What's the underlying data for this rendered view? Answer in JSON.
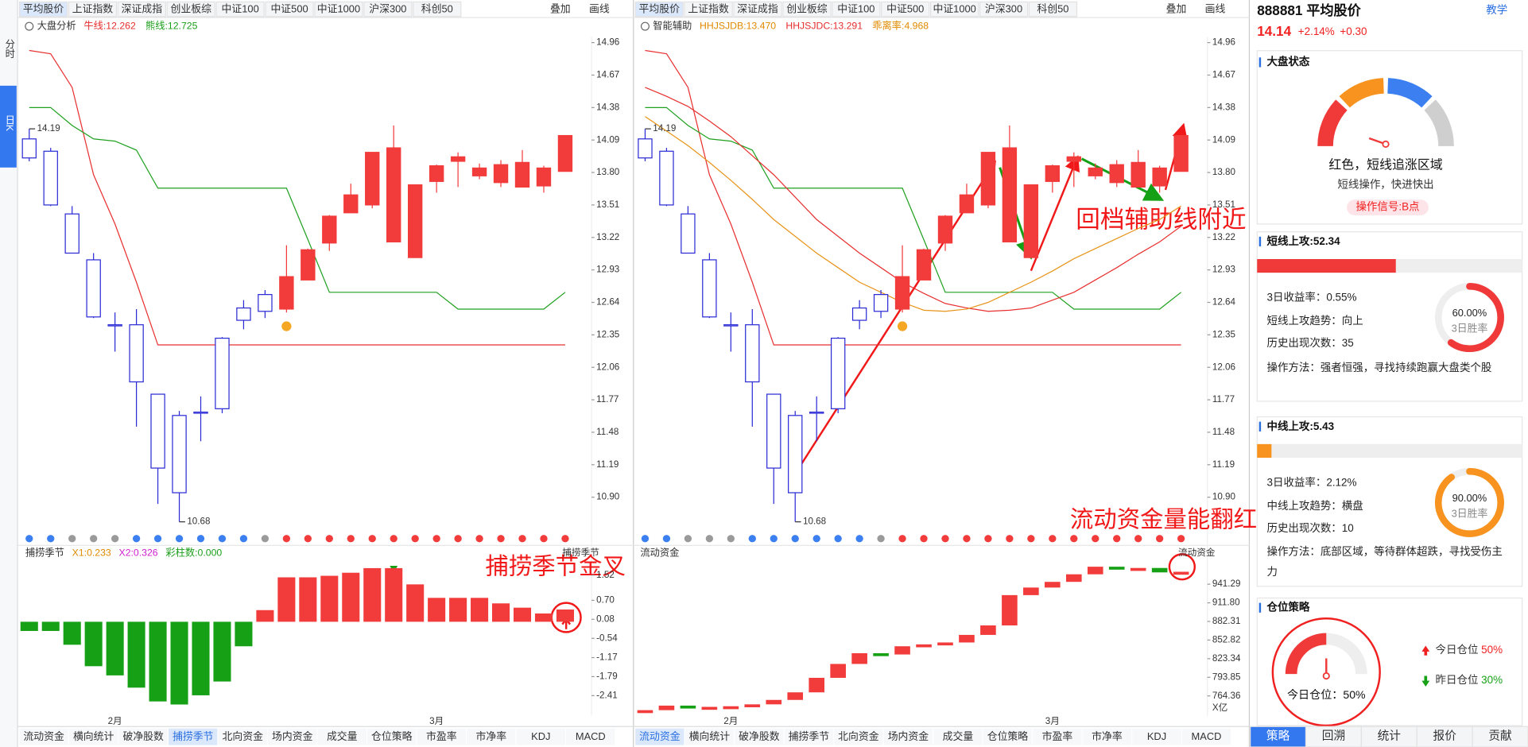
{
  "toolbar": {
    "tabs": [
      "平均股价",
      "上证指数",
      "深证成指",
      "创业板综",
      "中证100",
      "中证500",
      "中证1000",
      "沪深300",
      "科创50"
    ],
    "tools": [
      "叠加",
      "画线"
    ]
  },
  "sidebar": [
    "分时",
    "日K"
  ],
  "kline": {
    "ylim": [
      10.6,
      15.01
    ],
    "yticks": [
      14.96,
      14.67,
      14.38,
      14.09,
      {
        "value": 13.8,
        "label": "13.80"
      },
      13.51,
      13.22,
      12.93,
      12.64,
      12.35,
      12.06,
      11.77,
      11.48,
      11.19,
      {
        "value": 10.9,
        "label": "10.90"
      }
    ],
    "open": [
      13.93,
      13.51,
      13.08,
      12.51,
      12.43,
      11.93,
      11.16,
      10.94,
      11.65,
      11.69,
      12.48,
      12.56,
      12.87,
      13.11,
      13.41,
      13.6,
      13.98,
      14.02,
      13.69,
      13.86,
      13.94,
      13.84,
      13.87,
      13.89,
      13.84,
      14.13
    ],
    "high": [
      14.19,
      14.02,
      13.5,
      13.08,
      12.55,
      12.58,
      11.82,
      11.67,
      11.8,
      12.33,
      12.66,
      12.75,
      13.15,
      13.12,
      13.42,
      13.7,
      13.98,
      14.22,
      13.69,
      13.87,
      13.98,
      13.88,
      13.91,
      14.0,
      13.86,
      14.13
    ],
    "low": [
      13.9,
      13.5,
      13.08,
      12.5,
      12.2,
      11.53,
      10.84,
      10.68,
      11.4,
      11.65,
      12.4,
      12.5,
      12.55,
      12.84,
      13.1,
      13.44,
      13.48,
      13.18,
      13.04,
      13.62,
      13.67,
      13.74,
      13.67,
      13.67,
      13.62,
      13.81
    ],
    "close": [
      14.1,
      13.99,
      13.43,
      13.02,
      12.44,
      12.44,
      11.82,
      11.63,
      11.66,
      12.32,
      12.59,
      12.71,
      12.58,
      12.84,
      13.17,
      13.44,
      13.51,
      13.18,
      13.04,
      13.72,
      13.9,
      13.77,
      13.71,
      13.67,
      13.68,
      13.81
    ],
    "up_color": "#2b2bd6",
    "down_color": "#f23b3b",
    "high_mark": 14.19,
    "low_mark": 10.68,
    "dot_colors": [
      "#3b7ff0",
      "#3b7ff0",
      "#9a9a9a",
      "#9a9a9a",
      "#9a9a9a",
      "#3b7ff0",
      "#3b7ff0",
      "#3b7ff0",
      "#3b7ff0",
      "#3b7ff0",
      "#3b7ff0",
      "#9a9a9a",
      "#f23b3b",
      "#f23b3b",
      "#f23b3b",
      "#f23b3b",
      "#f23b3b",
      "#f23b3b",
      "#f23b3b",
      "#f23b3b",
      "#f23b3b",
      "#f23b3b",
      "#f23b3b",
      "#f23b3b",
      "#f23b3b",
      "#f23b3b"
    ],
    "categories": [
      null,
      null,
      null,
      null,
      "2月",
      null,
      null,
      null,
      null,
      null,
      null,
      null,
      null,
      null,
      null,
      null,
      null,
      null,
      null,
      "3月",
      null,
      null,
      null,
      null,
      null,
      null
    ]
  },
  "left_chart": {
    "title": "大盘分析",
    "legend": [
      {
        "text": "牛线:12.262",
        "color": "#e62e2e"
      },
      {
        "text": "熊线:12.725",
        "color": "#1a9e1a"
      }
    ],
    "lines": [
      {
        "color": "#e83030",
        "values": [
          14.89,
          14.86,
          14.56,
          13.78,
          13.34,
          12.82,
          12.26,
          12.26,
          12.26,
          12.26,
          12.26,
          12.26,
          12.26,
          12.26,
          12.26,
          12.26,
          12.26,
          12.26,
          12.26,
          12.26,
          12.26,
          12.26,
          12.26,
          12.26,
          12.26,
          12.26
        ]
      },
      {
        "color": "#1fa01f",
        "values": [
          14.38,
          14.38,
          14.22,
          14.1,
          14.08,
          14.0,
          13.66,
          13.66,
          13.66,
          13.66,
          13.66,
          13.66,
          13.66,
          13.2,
          12.73,
          12.73,
          12.73,
          12.73,
          12.73,
          12.73,
          12.58,
          12.58,
          12.58,
          12.58,
          12.58,
          12.73
        ]
      }
    ]
  },
  "right_chart": {
    "title": "智能辅助",
    "legend": [
      {
        "text": "HHJSJDB:13.470",
        "color": "#e08a00"
      },
      {
        "text": "HHJSJDC:13.291",
        "color": "#e62e2e"
      },
      {
        "text": "乖离率:4.968",
        "color": "#e08a00"
      }
    ],
    "lines": [
      {
        "color": "#e83030",
        "values": [
          14.89,
          14.86,
          14.56,
          13.78,
          13.34,
          12.82,
          12.26,
          12.26,
          12.26,
          12.26,
          12.26,
          12.26,
          12.26,
          12.26,
          12.26,
          12.26,
          12.26,
          12.26,
          12.26,
          12.26,
          12.26,
          12.26,
          12.26,
          12.26,
          12.26,
          12.26
        ]
      },
      {
        "color": "#1fa01f",
        "values": [
          14.38,
          14.38,
          14.22,
          14.1,
          14.08,
          14.0,
          13.66,
          13.66,
          13.66,
          13.66,
          13.66,
          13.66,
          13.66,
          13.2,
          12.73,
          12.73,
          12.73,
          12.73,
          12.73,
          12.73,
          12.58,
          12.58,
          12.58,
          12.58,
          12.58,
          12.73
        ]
      },
      {
        "color": "#e83030",
        "values": [
          14.56,
          14.48,
          14.39,
          14.26,
          14.12,
          13.95,
          13.78,
          13.58,
          13.38,
          13.23,
          13.08,
          12.95,
          12.82,
          12.72,
          12.63,
          12.59,
          12.56,
          12.57,
          12.59,
          12.66,
          12.73,
          12.84,
          12.95,
          13.07,
          13.18,
          13.32
        ]
      },
      {
        "color": "#e8941a",
        "values": [
          14.3,
          14.17,
          14.04,
          13.89,
          13.73,
          13.56,
          13.38,
          13.23,
          13.08,
          12.95,
          12.82,
          12.73,
          12.64,
          12.57,
          12.56,
          12.58,
          12.64,
          12.73,
          12.82,
          12.92,
          13.03,
          13.12,
          13.21,
          13.3,
          13.38,
          13.5
        ]
      }
    ],
    "annotations": [
      "回档辅助线附近",
      "流动资金量能翻红"
    ]
  },
  "oscillator": {
    "title": "捕捞季节",
    "legend": [
      {
        "text": "X1:0.233",
        "color": "#e08a00"
      },
      {
        "text": "X2:0.326",
        "color": "#d020d0"
      },
      {
        "text": "彩柱数:0.000",
        "color": "#1a9e1a"
      }
    ],
    "tag": "捕捞季节",
    "ylim": [
      -3.07,
      1.92
    ],
    "yticks": [
      1.52,
      {
        "value": 0.7,
        "label": "0.70"
      },
      0.08,
      -0.54,
      -1.17,
      -1.79,
      -2.41
    ],
    "values": [
      -0.3,
      -0.3,
      -0.75,
      -1.45,
      -1.75,
      -2.15,
      -2.6,
      -2.7,
      -2.4,
      -1.95,
      -0.8,
      0.38,
      1.45,
      1.45,
      1.5,
      1.6,
      1.75,
      1.75,
      1.22,
      0.78,
      0.78,
      0.78,
      0.6,
      0.46,
      0.27,
      0.4
    ],
    "pos_color": "#f23b3b",
    "neg_color": "#16a016",
    "annotation": "捕捞季节金叉"
  },
  "flow": {
    "title": "流动资金",
    "tag": "流动资金",
    "ylim": [
      732.8,
      975
    ],
    "yticks": [
      941.29,
      {
        "value": 911.8,
        "label": "911.80"
      },
      882.31,
      852.82,
      823.34,
      793.85,
      764.36
    ],
    "unit": "X亿",
    "values": [
      741.8,
      749,
      746,
      747,
      748,
      751,
      758,
      770,
      793,
      815,
      832,
      830,
      843,
      846,
      849,
      861,
      876,
      924,
      936,
      945,
      957,
      969,
      966,
      967,
      960,
      961
    ],
    "up_color": "#f23b3b",
    "down_color": "#16a016"
  },
  "bottom_tabs": [
    "流动资金",
    "横向统计",
    "破净股数",
    "捕捞季节",
    "北向资金",
    "场内资金",
    "成交量",
    "仓位策略",
    "市盈率",
    "市净率",
    "KDJ",
    "MACD"
  ],
  "side": {
    "code": "888881 平均股价",
    "teach": "教学",
    "price": 14.14,
    "change_pct": "+2.14%",
    "change": "+0.30",
    "status": {
      "title": "大盘状态",
      "headline": "红色，短线追涨区域",
      "desc": "短线操作，快进快出",
      "signal": "操作信号:B点"
    },
    "short": {
      "label": "短线上攻:",
      "value": 52.34,
      "color": "#f03a3a",
      "lines": [
        "3日收益率：0.55%",
        "短线上攻趋势：向上",
        "历史出现次数：35",
        "操作方法：强者恒强，寻找持续跑赢大盘类个股"
      ],
      "win_rate": {
        "value": 60,
        "label": "60.00%"
      },
      "win_label": "3日胜率"
    },
    "mid": {
      "label": "中线上攻:",
      "value": 5.43,
      "color": "#f7931e",
      "lines": [
        "3日收益率：2.12%",
        "中线上攻趋势：横盘",
        "历史出现次数：10",
        "操作方法：底部区域，等待群体超跌，寻找受伤主",
        "力"
      ],
      "win_rate": {
        "value": 90,
        "label": "90.00%"
      },
      "win_label": "3日胜率"
    },
    "position": {
      "title": "仓位策略",
      "gauge_text": "今日仓位：",
      "today_label": "今日仓位",
      "today": {
        "value": 50,
        "label": "50%"
      },
      "yesterday_label": "昨日仓位",
      "yesterday": {
        "value": 30,
        "label": "30%"
      }
    },
    "tabs": [
      "策略",
      "回溯",
      "统计",
      "报价",
      "贡献"
    ]
  }
}
